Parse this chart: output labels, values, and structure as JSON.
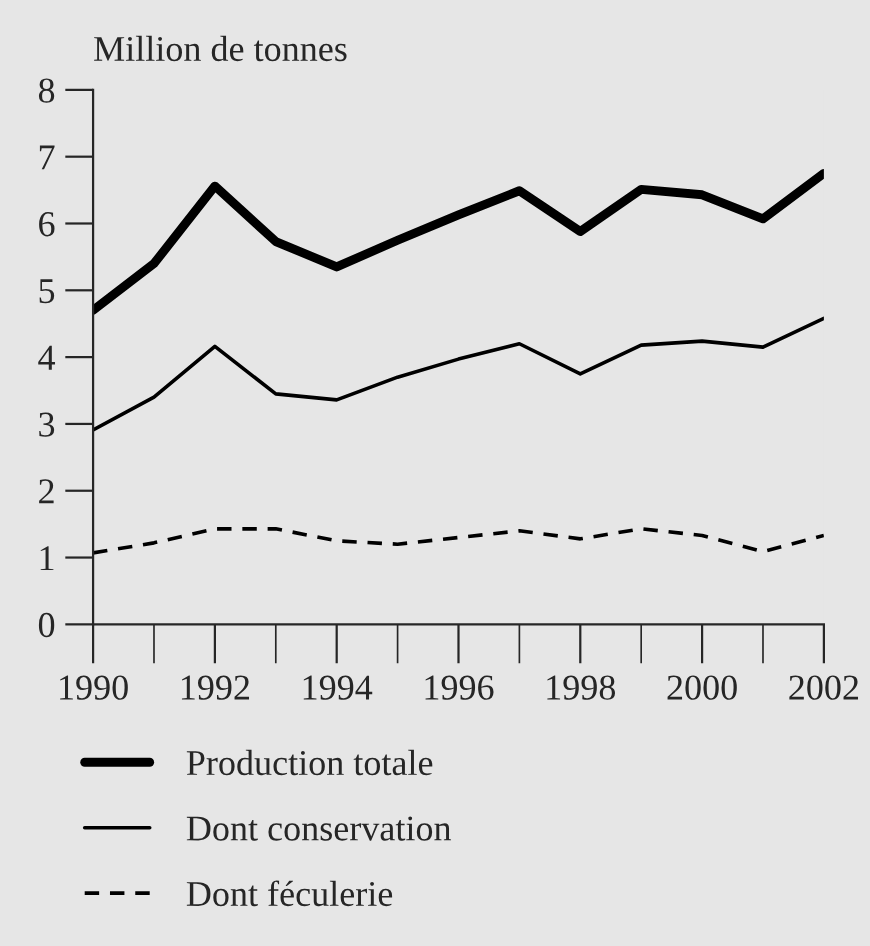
{
  "chart_data": {
    "type": "line",
    "ylabel": "Million de tonnes",
    "x": [
      1990,
      1991,
      1992,
      1993,
      1994,
      1995,
      1996,
      1997,
      1998,
      1999,
      2000,
      2001,
      2002
    ],
    "series": [
      {
        "name": "Production totale",
        "color": "#000000",
        "line_style": "solid",
        "values": [
          4.7,
          5.4,
          6.56,
          5.73,
          5.35,
          5.75,
          6.13,
          6.49,
          5.88,
          6.51,
          6.43,
          6.07,
          6.75
        ]
      },
      {
        "name": "Dont conservation",
        "color": "#000000",
        "line_style": "solid",
        "values": [
          2.91,
          3.4,
          4.16,
          3.45,
          3.36,
          3.7,
          3.97,
          4.2,
          3.75,
          4.18,
          4.24,
          4.15,
          4.58
        ]
      },
      {
        "name": "Dont féculerie",
        "color": "#000000",
        "line_style": "dashed",
        "values": [
          1.07,
          1.22,
          1.43,
          1.43,
          1.25,
          1.2,
          1.3,
          1.4,
          1.28,
          1.43,
          1.33,
          1.09,
          1.33
        ]
      }
    ],
    "xlim": [
      1990,
      2002
    ],
    "xticks": [
      1990,
      1992,
      1994,
      1996,
      1998,
      2000,
      2002
    ],
    "ylim": [
      0,
      8
    ],
    "yticks": [
      0,
      1,
      2,
      3,
      4,
      5,
      6,
      7,
      8
    ],
    "grid": false,
    "legend": "bottom"
  }
}
